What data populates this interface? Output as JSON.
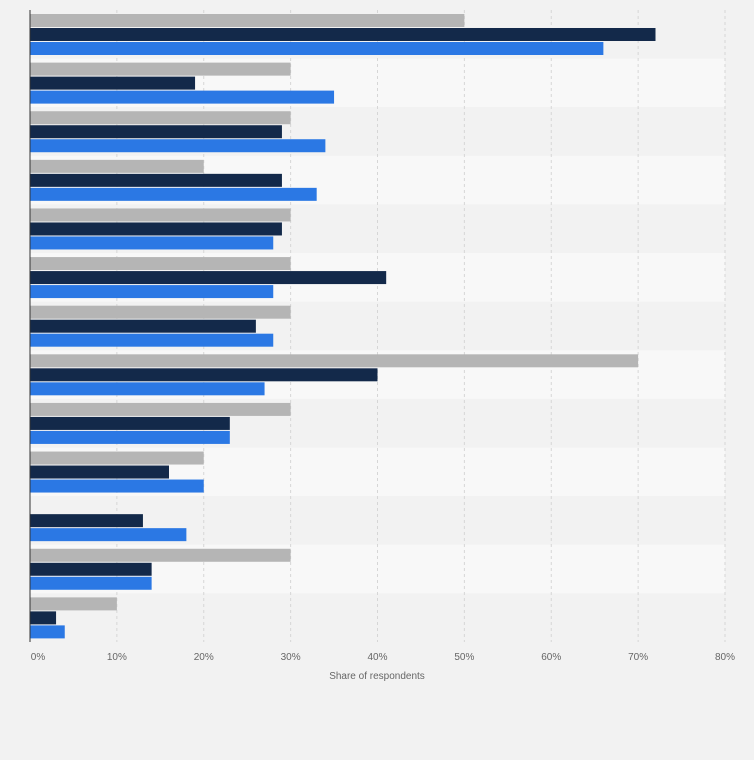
{
  "chart_data": {
    "type": "bar",
    "orientation": "horizontal",
    "categories": [
      "",
      "",
      "",
      "",
      "",
      "",
      "",
      "",
      "",
      "",
      "",
      "",
      ""
    ],
    "series": [
      {
        "color": "#b5b5b5",
        "values": [
          50,
          30,
          30,
          20,
          30,
          30,
          30,
          70,
          30,
          20,
          0,
          30,
          10
        ]
      },
      {
        "color": "#13294a",
        "values": [
          72,
          19,
          29,
          29,
          29,
          41,
          26,
          40,
          23,
          16,
          13,
          14,
          3
        ]
      },
      {
        "color": "#2b78e4",
        "values": [
          66,
          35,
          34,
          33,
          28,
          28,
          28,
          27,
          23,
          20,
          18,
          14,
          4
        ]
      }
    ],
    "x_ticks": [
      "0%",
      "10%",
      "20%",
      "30%",
      "40%",
      "50%",
      "60%",
      "70%",
      "80%"
    ],
    "xlabel": "Share of respondents",
    "xlim": [
      0,
      80
    ],
    "grid": true
  }
}
